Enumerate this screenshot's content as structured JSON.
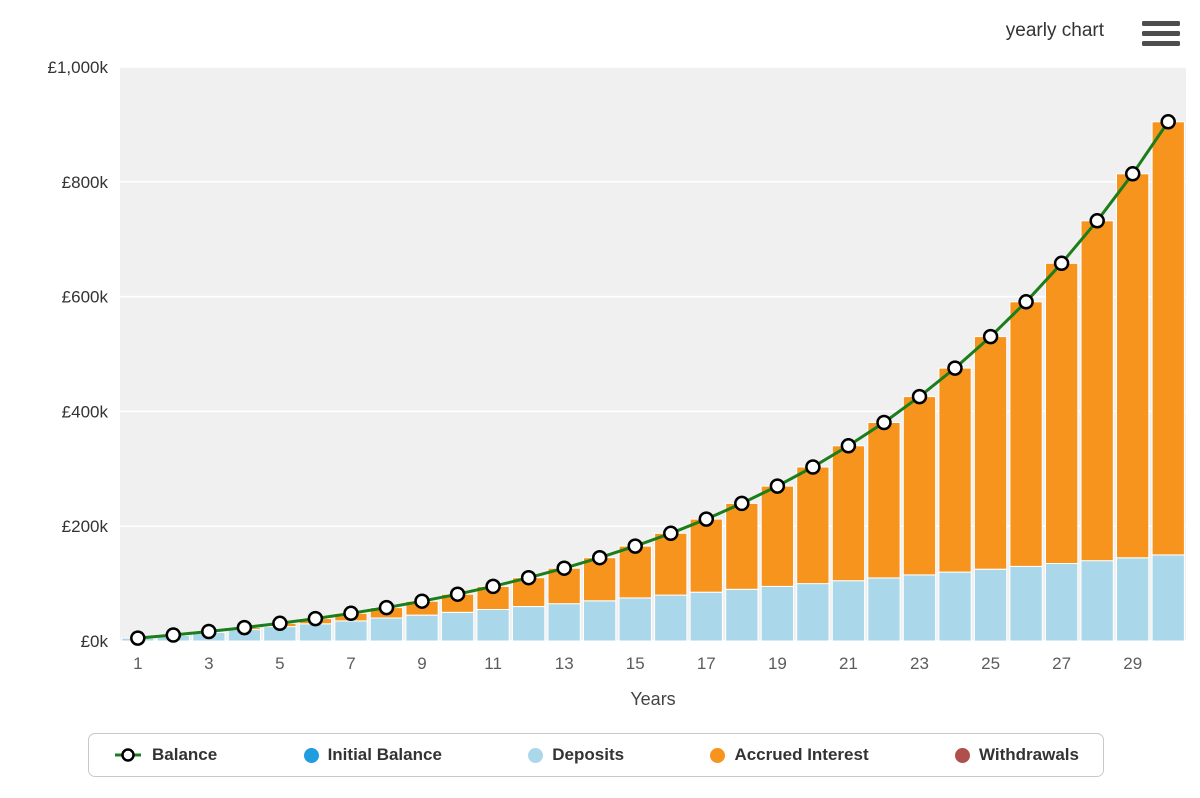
{
  "header": {
    "title": "yearly chart",
    "menu_icon": "hamburger-menu-icon"
  },
  "chart_data": {
    "type": "bar",
    "title": "",
    "xlabel": "Years",
    "ylabel": "",
    "ylim": [
      0,
      1000
    ],
    "units": "thousands of GBP",
    "plot_background": "#f0f0f0",
    "grid_color": "#ffffff",
    "legend_position": "bottom",
    "categories": [
      1,
      2,
      3,
      4,
      5,
      6,
      7,
      8,
      9,
      10,
      11,
      12,
      13,
      14,
      15,
      16,
      17,
      18,
      19,
      20,
      21,
      22,
      23,
      24,
      25,
      26,
      27,
      28,
      29,
      30
    ],
    "x_tick_years": [
      1,
      3,
      5,
      7,
      9,
      11,
      13,
      15,
      17,
      19,
      21,
      23,
      25,
      27,
      29
    ],
    "y_ticks": [
      {
        "value": 0,
        "label": "£0k"
      },
      {
        "value": 200,
        "label": "£200k"
      },
      {
        "value": 400,
        "label": "£400k"
      },
      {
        "value": 600,
        "label": "£600k"
      },
      {
        "value": 800,
        "label": "£800k"
      },
      {
        "value": 1000,
        "label": "£1,000k"
      }
    ],
    "series": [
      {
        "name": "Deposits",
        "type": "column",
        "color": "#abd7ea",
        "values": [
          5,
          10,
          15,
          20,
          25,
          30,
          35,
          40,
          45,
          50,
          55,
          60,
          65,
          70,
          75,
          80,
          85,
          90,
          95,
          100,
          105,
          110,
          115,
          120,
          125,
          130,
          135,
          140,
          145,
          150
        ]
      },
      {
        "name": "Accrued Interest",
        "type": "column",
        "color": "#f7941e",
        "values": [
          0,
          0.5,
          1.6,
          3.4,
          5.8,
          9.1,
          13.2,
          18.2,
          24.3,
          31.6,
          40.2,
          50.2,
          61.8,
          75.1,
          90.3,
          107.7,
          127.4,
          149.7,
          174.8,
          203.2,
          235,
          270.7,
          310.7,
          355.4,
          405.3,
          460.9,
          523,
          592.1,
          669,
          754.5
        ]
      },
      {
        "name": "Balance",
        "type": "line",
        "color": "#1b7e1b",
        "marker_fill": "#ffffff",
        "marker_stroke": "#000000",
        "values": [
          5,
          10.5,
          16.6,
          23.4,
          30.8,
          39.1,
          48.2,
          58.2,
          69.3,
          81.6,
          95.2,
          110.2,
          126.8,
          145.1,
          165.3,
          187.7,
          212.4,
          239.7,
          269.8,
          303.2,
          340,
          380.7,
          425.7,
          475.4,
          530.3,
          590.9,
          658,
          732.1,
          814,
          904.5
        ]
      }
    ]
  },
  "legend": {
    "items": [
      {
        "label": "Balance",
        "marker": "line-circle",
        "color": "#1b7e1b"
      },
      {
        "label": "Initial Balance",
        "marker": "circle",
        "color": "#1f9dde"
      },
      {
        "label": "Deposits",
        "marker": "circle",
        "color": "#abd7ea"
      },
      {
        "label": "Accrued Interest",
        "marker": "circle",
        "color": "#f7941e"
      },
      {
        "label": "Withdrawals",
        "marker": "circle",
        "color": "#b0504d"
      }
    ]
  }
}
